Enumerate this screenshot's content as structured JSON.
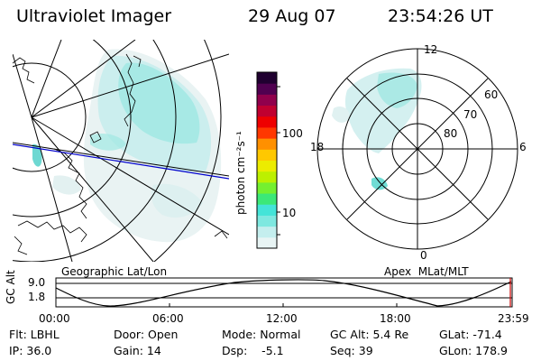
{
  "header": {
    "title": "Ultraviolet Imager",
    "date": "29 Aug 07",
    "time": "23:54:26 UT"
  },
  "colorbar": {
    "label": "photon cm⁻²s⁻¹",
    "tick_100": "100",
    "tick_10": "10",
    "colors": [
      "#e8f4f4",
      "#c4eeee",
      "#7ee8e0",
      "#44e4d8",
      "#3ce878",
      "#74f030",
      "#bcf000",
      "#ecec00",
      "#ffc800",
      "#ff9000",
      "#ff3800",
      "#ee0000",
      "#c00030",
      "#90004c",
      "#500050",
      "#200030"
    ]
  },
  "map_left": {
    "caption": "Geographic Lat/Lon"
  },
  "map_right": {
    "caption": "Apex  MLat/MLT",
    "mlt_labels": {
      "top": "12",
      "bottom": "0",
      "left": "18",
      "right": "6"
    },
    "lat_labels": [
      "60",
      "70",
      "80"
    ]
  },
  "altitude_plot": {
    "ylabel": "GC Alt",
    "yticks": [
      "9.0",
      "1.8"
    ],
    "xticks": [
      "00:00",
      "06:00",
      "12:00",
      "18:00",
      "23:59"
    ]
  },
  "info": {
    "filter": "Flt: LBHL",
    "ip": "IP: 36.0",
    "door": "Door: Open",
    "gain": "Gain: 14",
    "mode": "Mode: Normal",
    "dsp": "Dsp:    -5.1",
    "gc_alt": "GC Alt: 5.4 Re",
    "seq": "Seq: 39",
    "glat": "GLat: -71.4",
    "glon": "GLon: 178.9"
  }
}
